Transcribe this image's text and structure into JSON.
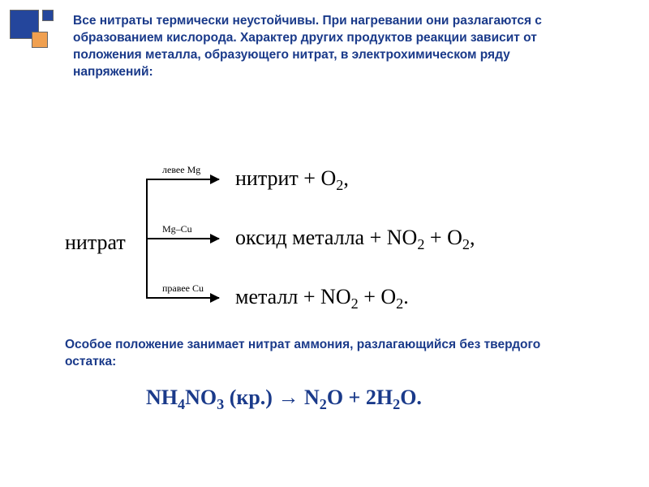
{
  "colors": {
    "title_text": "#1a3a8a",
    "body_text": "#000000",
    "decoration_blue": "#24469c",
    "decoration_orange": "#f0a050",
    "background": "#ffffff"
  },
  "typography": {
    "title_fontsize": 15.5,
    "title_weight": "bold",
    "formula_fontsize": 26,
    "formula_family": "Times New Roman",
    "condition_fontsize": 12
  },
  "title": "Все нитраты термически неустойчивы. При нагревании они разлагаются с образованием кислорода. Характер других продуктов реакции зависит от положения металла, образующего нитрат, в электрохимическом ряду напряжений:",
  "diagram": {
    "root_label": "нитрат",
    "branches": [
      {
        "condition": "левее Mg",
        "product_html": "нитрит + O<sub>2</sub>,"
      },
      {
        "condition": "Mg–Cu",
        "product_html": "оксид металла + NO<sub>2</sub> + O<sub>2</sub>,"
      },
      {
        "condition": "правее Cu",
        "product_html": "металл + NO<sub>2</sub> + O<sub>2</sub>."
      }
    ]
  },
  "footer_text": "Особое положение занимает нитрат аммония, разлагающийся без твердого остатка:",
  "equation_html": "NH<sub>4</sub>NO<sub>3</sub> (кр.) → N<sub>2</sub>O + 2H<sub>2</sub>O."
}
